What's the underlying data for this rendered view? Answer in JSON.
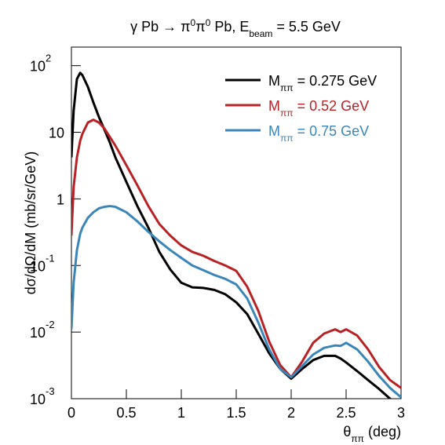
{
  "chart_data": {
    "type": "line",
    "title": [
      {
        "text": "γ Pb → π"
      },
      {
        "sup": "0"
      },
      {
        "text": "π"
      },
      {
        "sup": "0"
      },
      {
        "text": " Pb, E"
      },
      {
        "sub": "beam"
      },
      {
        "text": " = 5.5 GeV"
      }
    ],
    "x_label": [
      {
        "text": "θ"
      },
      {
        "sub": "ππ"
      },
      {
        "text": " (deg)"
      }
    ],
    "y_label": "dσ/dΩ/dM (mb/sr/GeV)",
    "x": [
      0,
      0.02,
      0.05,
      0.08,
      0.1,
      0.15,
      0.2,
      0.25,
      0.3,
      0.35,
      0.4,
      0.5,
      0.6,
      0.7,
      0.8,
      0.9,
      1.0,
      1.1,
      1.2,
      1.3,
      1.4,
      1.5,
      1.6,
      1.7,
      1.8,
      1.9,
      2.0,
      2.1,
      2.2,
      2.3,
      2.4,
      2.45,
      2.5,
      2.6,
      2.7,
      2.8,
      2.9,
      3.0
    ],
    "series": [
      {
        "name": [
          {
            "text": "M"
          },
          {
            "sub": "ππ"
          },
          {
            "text": " = 0.275 GeV"
          }
        ],
        "color": "#000000",
        "values": [
          4.2,
          21,
          63,
          78,
          72,
          48,
          28,
          17,
          11,
          7,
          4.2,
          1.8,
          0.78,
          0.37,
          0.16,
          0.087,
          0.055,
          0.047,
          0.046,
          0.043,
          0.037,
          0.028,
          0.0186,
          0.0095,
          0.0048,
          0.0028,
          0.002,
          0.0028,
          0.0038,
          0.0044,
          0.0044,
          0.004,
          0.0035,
          0.0026,
          0.0019,
          0.0014,
          0.001,
          0.0007
        ]
      },
      {
        "name": [
          {
            "text": "M"
          },
          {
            "sub": "ππ"
          },
          {
            "text": " = 0.52 GeV"
          }
        ],
        "color": "#b82226",
        "values": [
          0.28,
          1.5,
          4.2,
          7.5,
          9.5,
          14,
          15.4,
          14,
          11.4,
          8.5,
          6.3,
          3.2,
          1.6,
          0.78,
          0.42,
          0.28,
          0.2,
          0.16,
          0.14,
          0.117,
          0.1,
          0.083,
          0.048,
          0.021,
          0.0072,
          0.0032,
          0.0021,
          0.0036,
          0.0069,
          0.0095,
          0.011,
          0.01,
          0.011,
          0.0089,
          0.0055,
          0.003,
          0.0019,
          0.00145
        ]
      },
      {
        "name": [
          {
            "text": "M"
          },
          {
            "sub": "ππ"
          },
          {
            "text": " = 0.75 GeV"
          }
        ],
        "color": "#3b86b9",
        "values": [
          0.011,
          0.055,
          0.17,
          0.3,
          0.37,
          0.52,
          0.63,
          0.72,
          0.76,
          0.78,
          0.76,
          0.63,
          0.46,
          0.32,
          0.23,
          0.17,
          0.13,
          0.1,
          0.085,
          0.072,
          0.063,
          0.052,
          0.032,
          0.014,
          0.0055,
          0.0028,
          0.0021,
          0.0031,
          0.0046,
          0.0058,
          0.0063,
          0.0062,
          0.0069,
          0.0055,
          0.0036,
          0.0022,
          0.00145,
          0.00105
        ]
      }
    ],
    "xlim": [
      0,
      3
    ],
    "xticks": [
      0,
      0.5,
      1,
      1.5,
      2,
      2.5,
      3
    ],
    "ylim": [
      0.001,
      190
    ],
    "log_y": true,
    "yticks": [
      {
        "value": 0.001,
        "label": "10",
        "exp": "-3"
      },
      {
        "value": 0.01,
        "label": "10",
        "exp": "-2"
      },
      {
        "value": 0.1,
        "label": "10",
        "exp": "-1"
      },
      1,
      10,
      {
        "value": 100,
        "label": "10",
        "exp": "2"
      }
    ],
    "grid": false,
    "legend": "top-right"
  }
}
